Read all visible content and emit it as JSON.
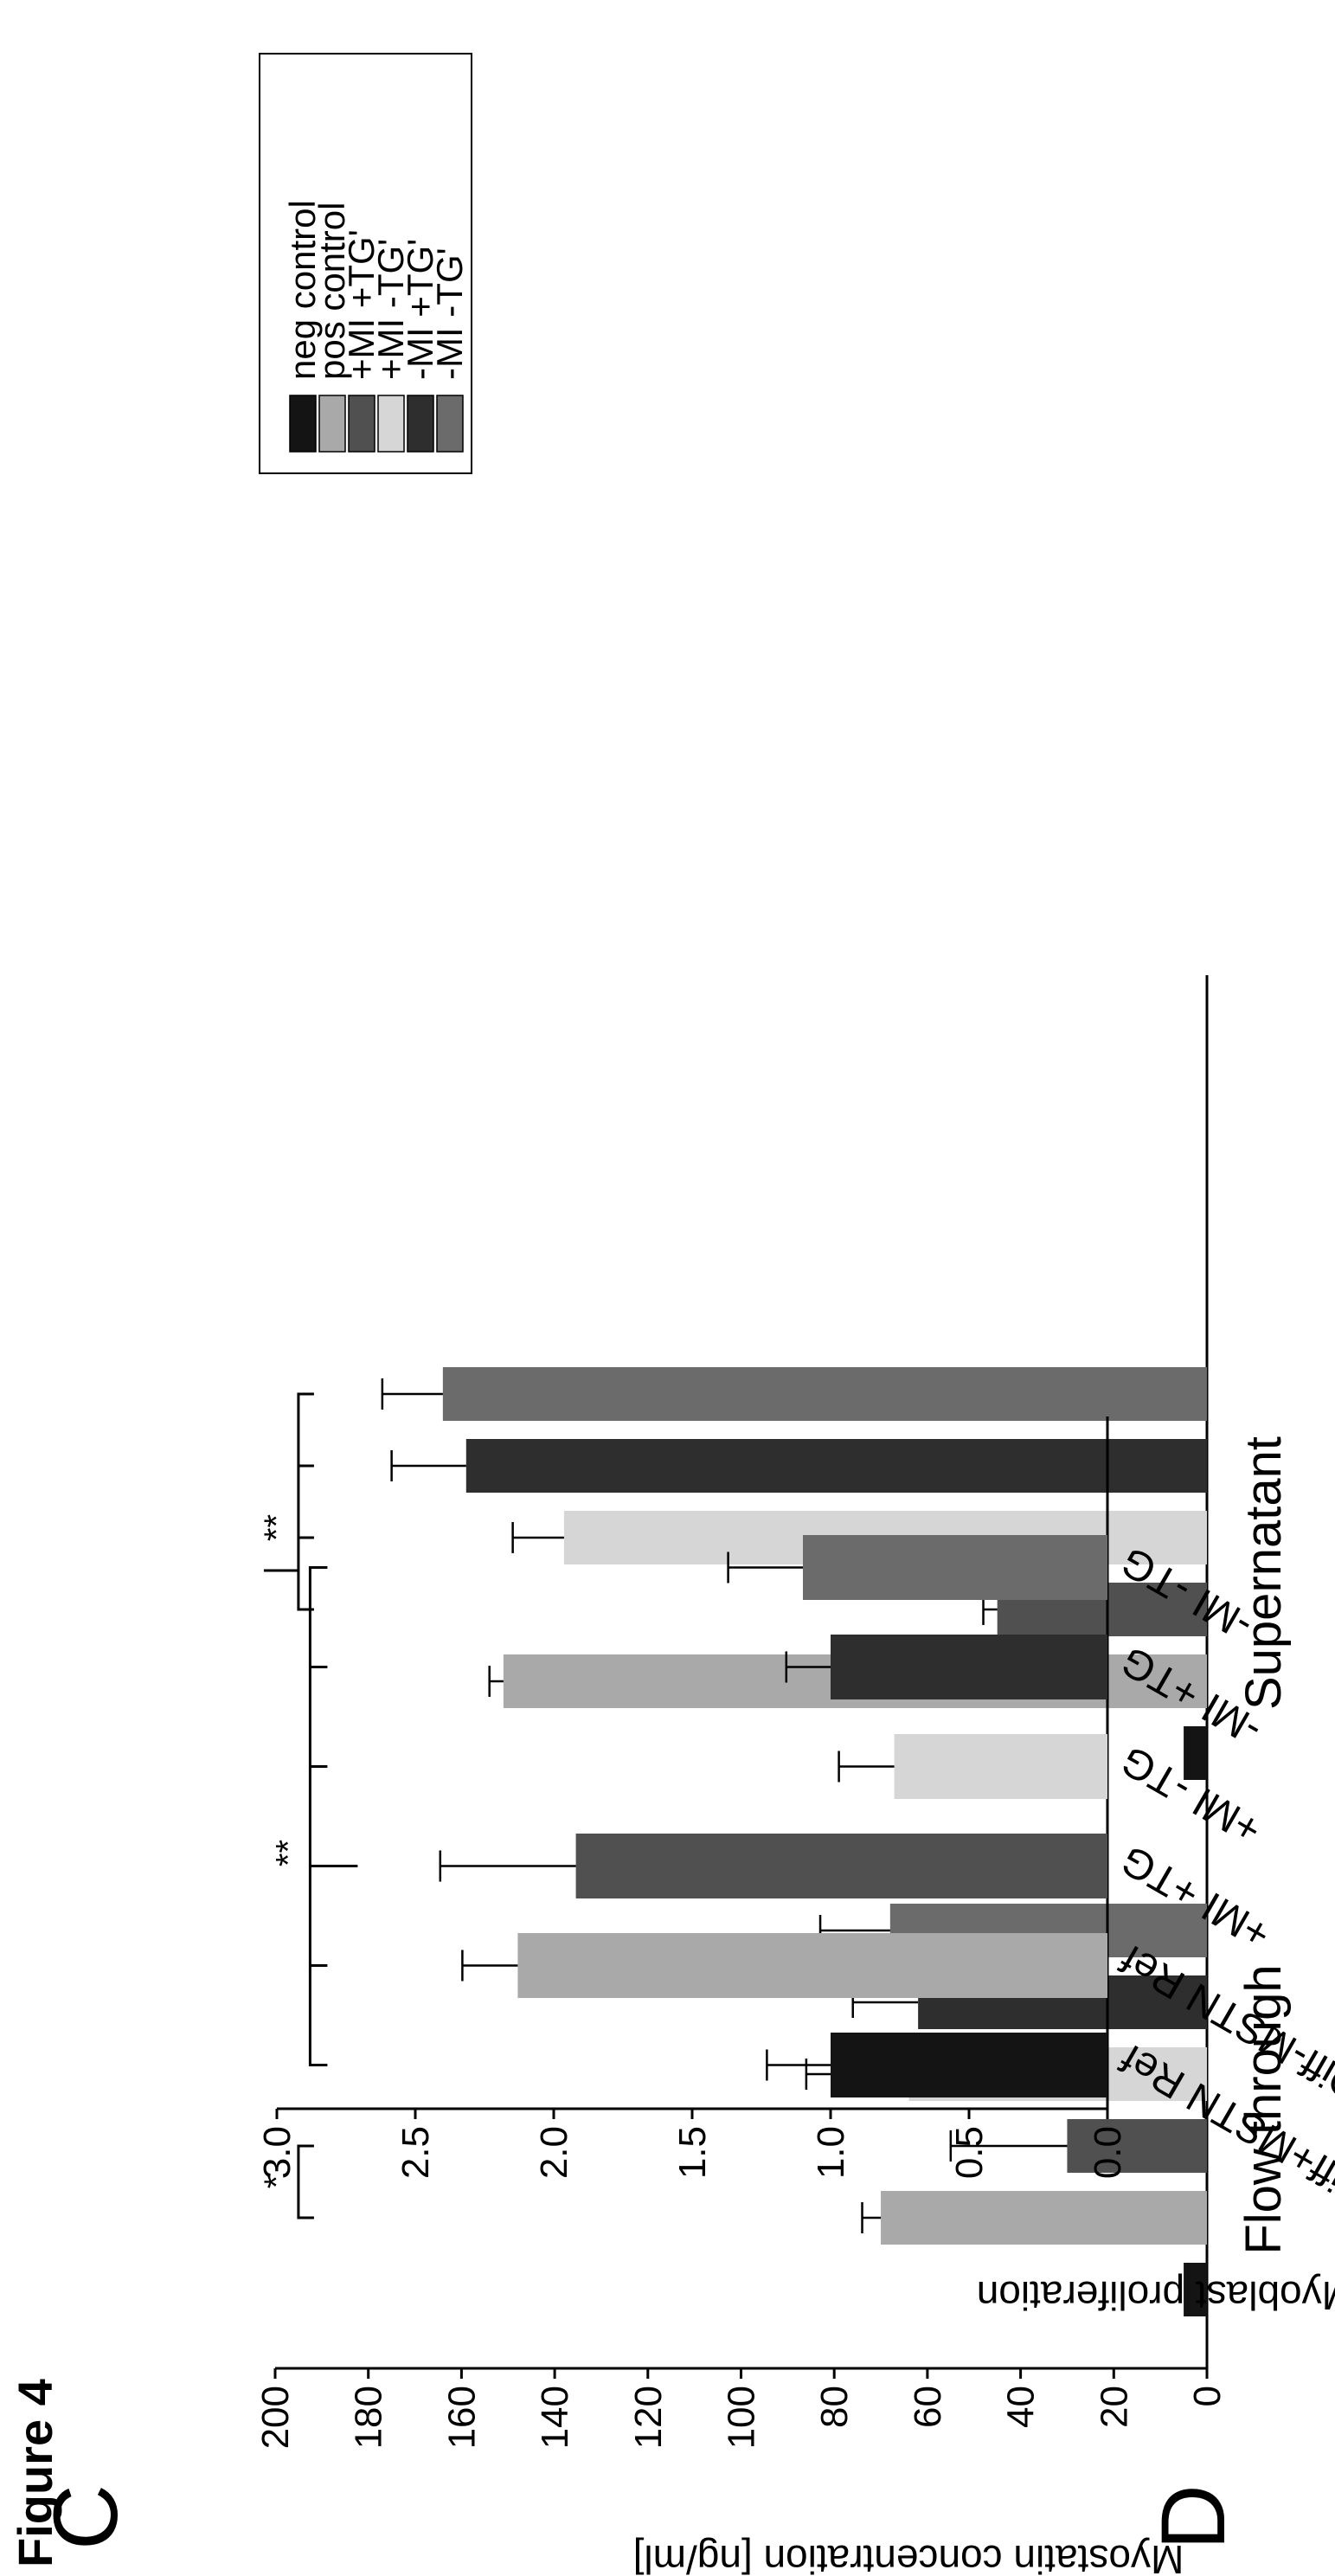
{
  "figure": {
    "title": "Figure 4"
  },
  "colors": {
    "neg_control": "#141414",
    "pos_control": "#a9a9a9",
    "plus_mi_plus_tg": "#505050",
    "plus_mi_minus_tg": "#d6d6d6",
    "minus_mi_plus_tg": "#2e2e2e",
    "minus_mi_minus_tg": "#6b6b6b"
  },
  "chart_data": [
    {
      "panel": "C",
      "type": "bar",
      "ylabel": "Myostatin concentration [ng/ml]",
      "ylim": [
        0,
        200
      ],
      "yticks": [
        "0",
        "20",
        "40",
        "60",
        "80",
        "100",
        "120",
        "140",
        "160",
        "180",
        "200"
      ],
      "categories": [
        "Flow through",
        "Supernatant"
      ],
      "series": [
        {
          "name": "neg control",
          "values": [
            5,
            5
          ],
          "errors": [
            0,
            0
          ],
          "color_key": "neg_control"
        },
        {
          "name": "pos control",
          "values": [
            70,
            151
          ],
          "errors": [
            4,
            3
          ],
          "color_key": "pos_control"
        },
        {
          "name": "+MI +TG'",
          "values": [
            30,
            45
          ],
          "errors": [
            25,
            3
          ],
          "color_key": "plus_mi_plus_tg"
        },
        {
          "name": "+MI -TG'",
          "values": [
            64,
            138
          ],
          "errors": [
            22,
            11
          ],
          "color_key": "plus_mi_minus_tg"
        },
        {
          "name": "-MI +TG'",
          "values": [
            62,
            159
          ],
          "errors": [
            14,
            16
          ],
          "color_key": "minus_mi_plus_tg"
        },
        {
          "name": "-MI -TG'",
          "values": [
            68,
            164
          ],
          "errors": [
            15,
            13
          ],
          "color_key": "minus_mi_minus_tg"
        }
      ],
      "annotations": [
        {
          "text": "*",
          "group": "Flow through",
          "between_series": [
            1,
            2
          ]
        },
        {
          "text": "**",
          "group": "Supernatant",
          "between_series": [
            2,
            5
          ]
        }
      ],
      "legend": {
        "placement": "right"
      }
    },
    {
      "panel": "D",
      "type": "bar",
      "ylabel": "x-fold Myoblast proliferation",
      "ylim": [
        0,
        3
      ],
      "yticks": [
        "0.0",
        "0.5",
        "1.0",
        "1.5",
        "2.0",
        "2.5",
        "3.0"
      ],
      "categories": [
        "Diff+MSTN Ref",
        "Diff-MSTN Ref",
        "+MI +TG",
        "+MI -TG",
        "-MI +TG",
        "-MI -TG"
      ],
      "values": [
        1.0,
        2.13,
        1.92,
        0.77,
        1.0,
        1.1
      ],
      "errors": [
        0.23,
        0.2,
        0.49,
        0.2,
        0.16,
        0.27
      ],
      "color_keys": [
        "neg_control",
        "pos_control",
        "plus_mi_plus_tg",
        "plus_mi_minus_tg",
        "minus_mi_plus_tg",
        "minus_mi_minus_tg"
      ],
      "annotations": [
        {
          "text": "**"
        }
      ]
    }
  ]
}
